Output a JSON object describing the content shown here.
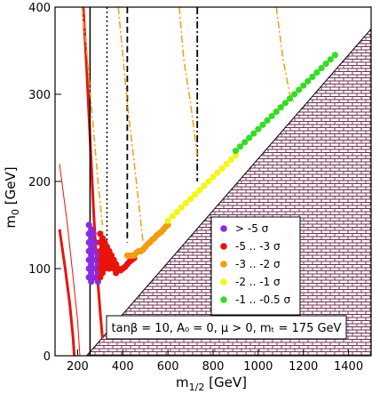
{
  "chart_data": {
    "type": "scatter",
    "xlabel_main": "m",
    "xlabel_sub": "1/2",
    "xlabel_unit": " [GeV]",
    "ylabel_main": "m",
    "ylabel_sub": "0",
    "ylabel_unit": " [GeV]",
    "xlim": [
      100,
      1500
    ],
    "ylim": [
      0,
      400
    ],
    "x_ticks": [
      200,
      400,
      600,
      800,
      1000,
      1200,
      1400
    ],
    "y_ticks": [
      0,
      100,
      200,
      300,
      400
    ],
    "grid": false,
    "legend_position": "lower-right",
    "annotation": "tanβ = 10, A₀ = 0, μ > 0, mₜ = 175 GeV",
    "excluded_region": {
      "description_color": "#6b2d52",
      "boundary": [
        [
          100,
          0
        ],
        [
          240,
          0
        ],
        [
          1500,
          375
        ],
        [
          1500,
          0
        ]
      ],
      "left_corner": [
        [
          160,
          0
        ],
        [
          240,
          0
        ],
        [
          180,
          20
        ]
      ]
    },
    "series": [
      {
        "name": "> -5 σ",
        "color": "#8a2be2",
        "points": [
          [
            250,
            150
          ],
          [
            250,
            140
          ],
          [
            250,
            130
          ],
          [
            250,
            120
          ],
          [
            250,
            110
          ],
          [
            250,
            100
          ],
          [
            250,
            90
          ],
          [
            260,
            85
          ],
          [
            260,
            95
          ],
          [
            260,
            105
          ],
          [
            260,
            115
          ],
          [
            260,
            125
          ],
          [
            260,
            135
          ],
          [
            260,
            145
          ],
          [
            270,
            90
          ],
          [
            270,
            100
          ],
          [
            270,
            110
          ],
          [
            270,
            120
          ],
          [
            270,
            130
          ],
          [
            270,
            140
          ],
          [
            280,
            90
          ],
          [
            280,
            100
          ],
          [
            280,
            110
          ],
          [
            280,
            120
          ],
          [
            280,
            130
          ],
          [
            290,
            85
          ],
          [
            290,
            95
          ],
          [
            290,
            105
          ],
          [
            290,
            115
          ]
        ]
      },
      {
        "name": "-5 .. -3 σ",
        "color": "#e8140c",
        "points": [
          [
            300,
            140
          ],
          [
            300,
            130
          ],
          [
            300,
            120
          ],
          [
            300,
            110
          ],
          [
            300,
            100
          ],
          [
            300,
            90
          ],
          [
            310,
            135
          ],
          [
            310,
            125
          ],
          [
            310,
            115
          ],
          [
            310,
            105
          ],
          [
            310,
            95
          ],
          [
            320,
            130
          ],
          [
            320,
            120
          ],
          [
            320,
            110
          ],
          [
            320,
            100
          ],
          [
            330,
            125
          ],
          [
            330,
            115
          ],
          [
            330,
            105
          ],
          [
            340,
            120
          ],
          [
            340,
            110
          ],
          [
            340,
            100
          ],
          [
            350,
            115
          ],
          [
            350,
            105
          ],
          [
            360,
            110
          ],
          [
            360,
            100
          ],
          [
            370,
            105
          ],
          [
            370,
            95
          ],
          [
            380,
            100
          ],
          [
            390,
            98
          ],
          [
            400,
            100
          ],
          [
            410,
            102
          ],
          [
            420,
            105
          ],
          [
            430,
            108
          ],
          [
            440,
            110
          ],
          [
            450,
            112
          ]
        ]
      },
      {
        "name": "-3 .. -2 σ",
        "color": "#f39c12",
        "points": [
          [
            420,
            115
          ],
          [
            430,
            115
          ],
          [
            440,
            115
          ],
          [
            450,
            115
          ],
          [
            460,
            118
          ],
          [
            470,
            120
          ],
          [
            480,
            120
          ],
          [
            490,
            122
          ],
          [
            500,
            125
          ],
          [
            510,
            128
          ],
          [
            520,
            130
          ],
          [
            530,
            133
          ],
          [
            540,
            135
          ],
          [
            550,
            138
          ],
          [
            560,
            140
          ],
          [
            570,
            142
          ],
          [
            580,
            145
          ],
          [
            590,
            148
          ],
          [
            600,
            150
          ]
        ]
      },
      {
        "name": "-2 .. -1 σ",
        "color": "#f5f519",
        "points": [
          [
            600,
            155
          ],
          [
            620,
            160
          ],
          [
            640,
            165
          ],
          [
            660,
            170
          ],
          [
            680,
            175
          ],
          [
            700,
            180
          ],
          [
            720,
            185
          ],
          [
            740,
            190
          ],
          [
            760,
            195
          ],
          [
            780,
            200
          ],
          [
            800,
            205
          ],
          [
            820,
            210
          ],
          [
            840,
            215
          ],
          [
            860,
            220
          ],
          [
            880,
            225
          ],
          [
            900,
            230
          ]
        ]
      },
      {
        "name": "-1 .. -0.5 σ",
        "color": "#33dd22",
        "points": [
          [
            900,
            235
          ],
          [
            920,
            240
          ],
          [
            940,
            245
          ],
          [
            960,
            250
          ],
          [
            980,
            255
          ],
          [
            1000,
            260
          ],
          [
            1020,
            265
          ],
          [
            1040,
            270
          ],
          [
            1060,
            275
          ],
          [
            1080,
            280
          ],
          [
            1100,
            285
          ],
          [
            1120,
            290
          ],
          [
            1140,
            295
          ],
          [
            1160,
            300
          ],
          [
            1180,
            305
          ],
          [
            1200,
            310
          ],
          [
            1220,
            315
          ],
          [
            1240,
            320
          ],
          [
            1260,
            325
          ],
          [
            1280,
            330
          ],
          [
            1300,
            335
          ],
          [
            1320,
            340
          ],
          [
            1340,
            345
          ]
        ]
      }
    ],
    "lines": [
      {
        "style": "solid-red-thick",
        "color": "#e8140c",
        "points": [
          [
            225,
            400
          ],
          [
            240,
            330
          ],
          [
            255,
            250
          ],
          [
            270,
            170
          ],
          [
            285,
            100
          ],
          [
            300,
            50
          ],
          [
            310,
            20
          ]
        ]
      },
      {
        "style": "solid-red-thick-2",
        "color": "#e8140c",
        "points": [
          [
            120,
            145
          ],
          [
            145,
            100
          ],
          [
            165,
            60
          ],
          [
            180,
            20
          ],
          [
            185,
            0
          ]
        ]
      },
      {
        "style": "solid-red-thin",
        "color": "#e8140c",
        "points": [
          [
            120,
            220
          ],
          [
            155,
            150
          ],
          [
            180,
            90
          ],
          [
            200,
            40
          ],
          [
            210,
            0
          ]
        ]
      },
      {
        "style": "solid-black",
        "color": "#000000",
        "points": [
          [
            255,
            400
          ],
          [
            255,
            0
          ]
        ]
      },
      {
        "style": "dotted-black",
        "color": "#000000",
        "points": [
          [
            330,
            400
          ],
          [
            330,
            100
          ]
        ]
      },
      {
        "style": "dashed-black",
        "color": "#000000",
        "points": [
          [
            420,
            400
          ],
          [
            420,
            130
          ]
        ]
      },
      {
        "style": "dashdot-black",
        "color": "#000000",
        "points": [
          [
            730,
            400
          ],
          [
            730,
            200
          ]
        ]
      },
      {
        "style": "dashdot-orange",
        "color": "#f39c12",
        "points": [
          [
            220,
            400
          ],
          [
            240,
            350
          ],
          [
            260,
            290
          ],
          [
            290,
            200
          ],
          [
            310,
            150
          ]
        ]
      },
      {
        "style": "dashdot-orange",
        "color": "#f39c12",
        "points": [
          [
            380,
            400
          ],
          [
            420,
            290
          ],
          [
            460,
            200
          ],
          [
            490,
            130
          ]
        ]
      },
      {
        "style": "dashdot-orange",
        "color": "#f39c12",
        "points": [
          [
            650,
            400
          ],
          [
            670,
            340
          ],
          [
            700,
            290
          ],
          [
            730,
            230
          ]
        ]
      },
      {
        "style": "dashdot-orange",
        "color": "#f39c12",
        "points": [
          [
            1080,
            400
          ],
          [
            1110,
            340
          ],
          [
            1140,
            300
          ],
          [
            1160,
            290
          ]
        ]
      }
    ]
  }
}
